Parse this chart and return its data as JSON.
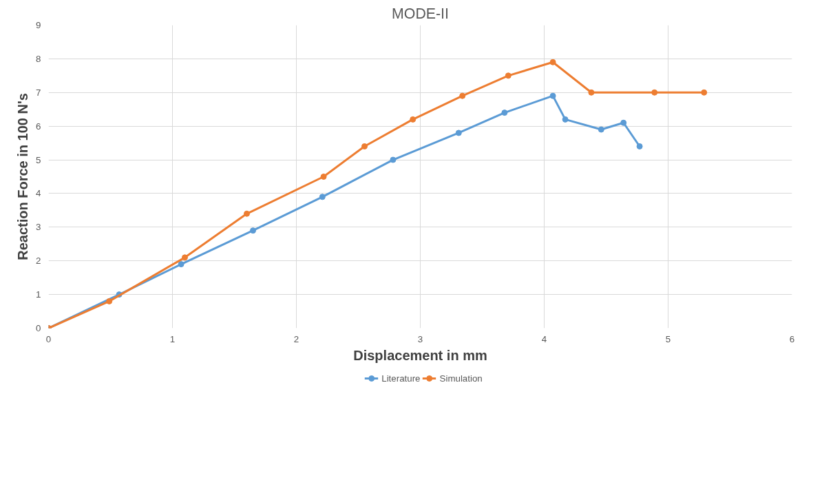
{
  "chart_data": {
    "type": "line",
    "title": "MODE-II",
    "xlabel": "Displacement in mm",
    "ylabel": "Reaction Force in 100 N's",
    "xlim": [
      0,
      6
    ],
    "xticks": [
      0,
      1,
      2,
      3,
      4,
      5,
      6
    ],
    "ylim": [
      0,
      9
    ],
    "yticks": [
      0,
      1,
      2,
      3,
      4,
      5,
      6,
      7,
      8,
      9
    ],
    "grid": true,
    "legend": "bottom",
    "marker": "circle",
    "line_style": "solid",
    "series": [
      {
        "name": "Literature",
        "color": "#5b9bd5",
        "x": [
          0,
          0.57,
          1.07,
          1.65,
          2.21,
          2.78,
          3.31,
          3.68,
          4.07,
          4.17,
          4.46,
          4.64,
          4.77
        ],
        "values": [
          0,
          1.0,
          1.9,
          2.9,
          3.9,
          5.0,
          5.8,
          6.4,
          6.9,
          6.2,
          5.9,
          6.1,
          5.4
        ]
      },
      {
        "name": "Simulation",
        "color": "#ed7d31",
        "x": [
          0,
          0.49,
          1.1,
          1.6,
          2.22,
          2.55,
          2.94,
          3.34,
          3.71,
          4.07,
          4.38,
          4.89,
          5.29
        ],
        "values": [
          0,
          0.8,
          2.1,
          3.4,
          4.5,
          5.4,
          6.2,
          6.9,
          7.5,
          7.9,
          7.0,
          7.0,
          7.0
        ]
      }
    ]
  }
}
